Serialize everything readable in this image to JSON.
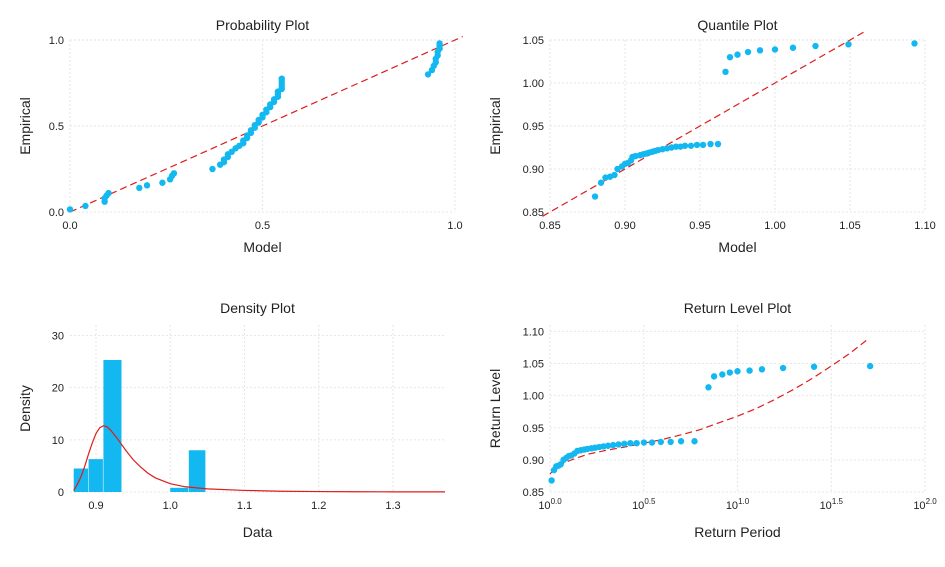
{
  "colors": {
    "points": "#14b8f0",
    "fit": "#dd1c1c",
    "bars": "#14b8f0",
    "grid": "#e6e6e6",
    "text": "#222222"
  },
  "chart_data": [
    {
      "id": "probability",
      "type": "scatter",
      "title": "Probability Plot",
      "xlabel": "Model",
      "ylabel": "Empirical",
      "xlim": [
        0.0,
        1.0
      ],
      "ylim": [
        0.0,
        1.0
      ],
      "xticks": [
        0.0,
        0.5,
        1.0
      ],
      "xtick_labels": [
        "0.0",
        "0.5",
        "1.0"
      ],
      "yticks": [
        0.0,
        0.5,
        1.0
      ],
      "ytick_labels": [
        "0.0",
        "0.5",
        "1.0"
      ],
      "grid": true,
      "reference_line": {
        "style": "dashed",
        "points": [
          [
            0.0,
            0.0
          ],
          [
            1.02,
            1.02
          ]
        ]
      },
      "points": [
        [
          0.0,
          0.015
        ],
        [
          0.04,
          0.035
        ],
        [
          0.09,
          0.06
        ],
        [
          0.09,
          0.08
        ],
        [
          0.095,
          0.095
        ],
        [
          0.1,
          0.11
        ],
        [
          0.18,
          0.14
        ],
        [
          0.2,
          0.155
        ],
        [
          0.24,
          0.17
        ],
        [
          0.26,
          0.19
        ],
        [
          0.265,
          0.21
        ],
        [
          0.27,
          0.225
        ],
        [
          0.37,
          0.25
        ],
        [
          0.39,
          0.275
        ],
        [
          0.4,
          0.29
        ],
        [
          0.4,
          0.305
        ],
        [
          0.41,
          0.32
        ],
        [
          0.41,
          0.335
        ],
        [
          0.42,
          0.35
        ],
        [
          0.43,
          0.37
        ],
        [
          0.44,
          0.385
        ],
        [
          0.45,
          0.4
        ],
        [
          0.45,
          0.415
        ],
        [
          0.46,
          0.43
        ],
        [
          0.46,
          0.445
        ],
        [
          0.47,
          0.46
        ],
        [
          0.47,
          0.475
        ],
        [
          0.48,
          0.49
        ],
        [
          0.48,
          0.505
        ],
        [
          0.49,
          0.52
        ],
        [
          0.49,
          0.535
        ],
        [
          0.5,
          0.55
        ],
        [
          0.5,
          0.565
        ],
        [
          0.51,
          0.58
        ],
        [
          0.51,
          0.595
        ],
        [
          0.52,
          0.61
        ],
        [
          0.52,
          0.625
        ],
        [
          0.53,
          0.64
        ],
        [
          0.53,
          0.655
        ],
        [
          0.54,
          0.67
        ],
        [
          0.54,
          0.685
        ],
        [
          0.54,
          0.7
        ],
        [
          0.55,
          0.715
        ],
        [
          0.55,
          0.73
        ],
        [
          0.55,
          0.745
        ],
        [
          0.55,
          0.76
        ],
        [
          0.55,
          0.775
        ],
        [
          0.93,
          0.8
        ],
        [
          0.94,
          0.825
        ],
        [
          0.945,
          0.85
        ],
        [
          0.95,
          0.87
        ],
        [
          0.95,
          0.89
        ],
        [
          0.955,
          0.91
        ],
        [
          0.955,
          0.93
        ],
        [
          0.96,
          0.95
        ],
        [
          0.96,
          0.965
        ],
        [
          0.96,
          0.98
        ]
      ]
    },
    {
      "id": "quantile",
      "type": "scatter",
      "title": "Quantile Plot",
      "xlabel": "Model",
      "ylabel": "Empirical",
      "xlim": [
        0.85,
        1.1
      ],
      "ylim": [
        0.85,
        1.05
      ],
      "xticks": [
        0.85,
        0.9,
        0.95,
        1.0,
        1.05,
        1.1
      ],
      "xtick_labels": [
        "0.85",
        "0.90",
        "0.95",
        "1.00",
        "1.05",
        "1.10"
      ],
      "yticks": [
        0.85,
        0.9,
        0.95,
        1.0,
        1.05
      ],
      "ytick_labels": [
        "0.85",
        "0.90",
        "0.95",
        "1.00",
        "1.05"
      ],
      "grid": true,
      "reference_line": {
        "style": "dashed",
        "points": [
          [
            0.845,
            0.845
          ],
          [
            1.06,
            1.06
          ]
        ]
      },
      "points": [
        [
          0.88,
          0.868
        ],
        [
          0.884,
          0.884
        ],
        [
          0.887,
          0.89
        ],
        [
          0.89,
          0.891
        ],
        [
          0.893,
          0.893
        ],
        [
          0.895,
          0.9
        ],
        [
          0.898,
          0.903
        ],
        [
          0.9,
          0.906
        ],
        [
          0.902,
          0.907
        ],
        [
          0.904,
          0.91
        ],
        [
          0.905,
          0.914
        ],
        [
          0.907,
          0.915
        ],
        [
          0.91,
          0.916
        ],
        [
          0.912,
          0.917
        ],
        [
          0.914,
          0.918
        ],
        [
          0.916,
          0.919
        ],
        [
          0.918,
          0.92
        ],
        [
          0.92,
          0.921
        ],
        [
          0.922,
          0.922
        ],
        [
          0.925,
          0.923
        ],
        [
          0.928,
          0.924
        ],
        [
          0.931,
          0.925
        ],
        [
          0.934,
          0.926
        ],
        [
          0.937,
          0.926
        ],
        [
          0.94,
          0.927
        ],
        [
          0.944,
          0.927
        ],
        [
          0.948,
          0.928
        ],
        [
          0.952,
          0.928
        ],
        [
          0.957,
          0.929
        ],
        [
          0.962,
          0.929
        ],
        [
          0.967,
          1.013
        ],
        [
          0.97,
          1.03
        ],
        [
          0.975,
          1.033
        ],
        [
          0.982,
          1.036
        ],
        [
          0.99,
          1.038
        ],
        [
          1.0,
          1.039
        ],
        [
          1.012,
          1.041
        ],
        [
          1.027,
          1.043
        ],
        [
          1.049,
          1.045
        ],
        [
          1.093,
          1.046
        ]
      ]
    },
    {
      "id": "density",
      "type": "bar",
      "title": "Density Plot",
      "xlabel": "Data",
      "ylabel": "Density",
      "xlim": [
        0.865,
        1.37
      ],
      "ylim": [
        0,
        32
      ],
      "xticks": [
        0.9,
        1.0,
        1.1,
        1.2,
        1.3
      ],
      "xtick_labels": [
        "0.9",
        "1.0",
        "1.1",
        "1.2",
        "1.3"
      ],
      "yticks": [
        0,
        10,
        20,
        30
      ],
      "ytick_labels": [
        "0",
        "10",
        "20",
        "30"
      ],
      "grid": true,
      "bins": [
        {
          "x0": 0.87,
          "x1": 0.89,
          "value": 4.5
        },
        {
          "x0": 0.89,
          "x1": 0.91,
          "value": 6.3
        },
        {
          "x0": 0.91,
          "x1": 0.935,
          "value": 25.3
        },
        {
          "x0": 1.0,
          "x1": 1.025,
          "value": 0.8
        },
        {
          "x0": 1.025,
          "x1": 1.048,
          "value": 8.0
        }
      ],
      "density_curve": [
        [
          0.87,
          0.3
        ],
        [
          0.875,
          1.5
        ],
        [
          0.88,
          3.0
        ],
        [
          0.885,
          5.0
        ],
        [
          0.89,
          7.3
        ],
        [
          0.895,
          9.4
        ],
        [
          0.9,
          11.2
        ],
        [
          0.905,
          12.3
        ],
        [
          0.91,
          12.7
        ],
        [
          0.915,
          12.5
        ],
        [
          0.92,
          11.8
        ],
        [
          0.93,
          10.0
        ],
        [
          0.94,
          8.0
        ],
        [
          0.95,
          6.2
        ],
        [
          0.96,
          4.8
        ],
        [
          0.97,
          3.6
        ],
        [
          0.98,
          2.7
        ],
        [
          1.0,
          1.6
        ],
        [
          1.02,
          1.0
        ],
        [
          1.05,
          0.6
        ],
        [
          1.1,
          0.3
        ],
        [
          1.15,
          0.15
        ],
        [
          1.2,
          0.08
        ],
        [
          1.25,
          0.05
        ],
        [
          1.3,
          0.03
        ],
        [
          1.37,
          0.02
        ]
      ]
    },
    {
      "id": "return-level",
      "type": "scatter",
      "title": "Return Level Plot",
      "xlabel": "Return Period",
      "ylabel": "Return Level",
      "x_scale": "log10",
      "xlim": [
        1,
        100
      ],
      "ylim": [
        0.85,
        1.11
      ],
      "xticks": [
        1,
        3.1623,
        10,
        31.623,
        100
      ],
      "xtick_labels": [
        [
          "10",
          "0.0"
        ],
        [
          "10",
          "0.5"
        ],
        [
          "10",
          "1.0"
        ],
        [
          "10",
          "1.5"
        ],
        [
          "10",
          "2.0"
        ]
      ],
      "yticks": [
        0.85,
        0.9,
        0.95,
        1.0,
        1.05,
        1.1
      ],
      "ytick_labels": [
        "0.85",
        "0.90",
        "0.95",
        "1.00",
        "1.05",
        "1.10"
      ],
      "grid": true,
      "return_level_curve": [
        [
          1.0,
          0.878
        ],
        [
          1.05,
          0.885
        ],
        [
          1.15,
          0.893
        ],
        [
          1.3,
          0.9
        ],
        [
          1.6,
          0.909
        ],
        [
          2.0,
          0.915
        ],
        [
          2.5,
          0.92
        ],
        [
          3.16,
          0.926
        ],
        [
          4.0,
          0.932
        ],
        [
          5.0,
          0.939
        ],
        [
          6.3,
          0.947
        ],
        [
          8.0,
          0.958
        ],
        [
          10.0,
          0.968
        ],
        [
          12.6,
          0.98
        ],
        [
          15.8,
          0.994
        ],
        [
          20.0,
          1.01
        ],
        [
          25.1,
          1.027
        ],
        [
          31.6,
          1.046
        ],
        [
          39.8,
          1.066
        ],
        [
          50.1,
          1.089
        ]
      ],
      "points": [
        [
          1.02,
          0.868
        ],
        [
          1.05,
          0.884
        ],
        [
          1.08,
          0.89
        ],
        [
          1.11,
          0.891
        ],
        [
          1.14,
          0.893
        ],
        [
          1.18,
          0.9
        ],
        [
          1.22,
          0.903
        ],
        [
          1.26,
          0.906
        ],
        [
          1.3,
          0.907
        ],
        [
          1.35,
          0.91
        ],
        [
          1.4,
          0.914
        ],
        [
          1.46,
          0.915
        ],
        [
          1.52,
          0.916
        ],
        [
          1.58,
          0.917
        ],
        [
          1.66,
          0.918
        ],
        [
          1.74,
          0.919
        ],
        [
          1.83,
          0.92
        ],
        [
          1.93,
          0.921
        ],
        [
          2.04,
          0.922
        ],
        [
          2.17,
          0.923
        ],
        [
          2.32,
          0.924
        ],
        [
          2.49,
          0.925
        ],
        [
          2.68,
          0.926
        ],
        [
          2.9,
          0.926
        ],
        [
          3.17,
          0.927
        ],
        [
          3.5,
          0.927
        ],
        [
          3.9,
          0.928
        ],
        [
          4.4,
          0.928
        ],
        [
          5.0,
          0.929
        ],
        [
          5.9,
          0.929
        ],
        [
          7.0,
          1.013
        ],
        [
          7.5,
          1.03
        ],
        [
          8.3,
          1.033
        ],
        [
          9.1,
          1.036
        ],
        [
          10.0,
          1.038
        ],
        [
          11.6,
          1.039
        ],
        [
          13.5,
          1.041
        ],
        [
          17.5,
          1.043
        ],
        [
          25.6,
          1.045
        ],
        [
          51.0,
          1.046
        ]
      ]
    }
  ]
}
